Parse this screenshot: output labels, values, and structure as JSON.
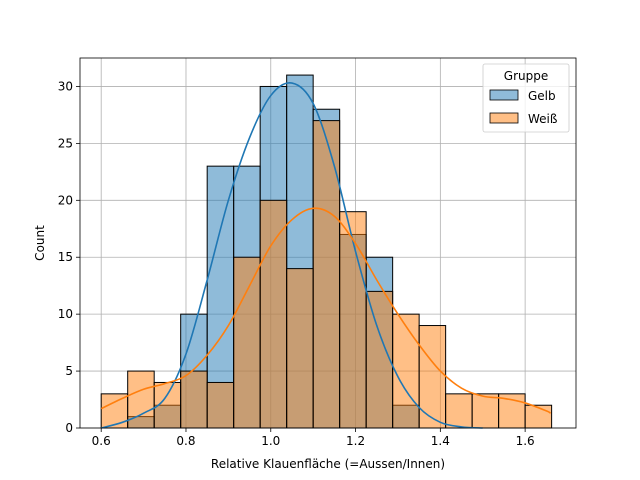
{
  "chart_data": {
    "type": "histogram",
    "xlabel": "Relative Klauenfläche (=Aussen/Innen)",
    "ylabel": "Count",
    "xlim": [
      0.55,
      1.72
    ],
    "ylim": [
      0,
      32.5
    ],
    "xticks": [
      0.6,
      0.8,
      1.0,
      1.2,
      1.4,
      1.6
    ],
    "xtick_labels": [
      "0.6",
      "0.8",
      "1.0",
      "1.2",
      "1.4",
      "1.6"
    ],
    "yticks": [
      0,
      5,
      10,
      15,
      20,
      25,
      30
    ],
    "ytick_labels": [
      "0",
      "5",
      "10",
      "15",
      "20",
      "25",
      "30"
    ],
    "grid": true,
    "legend": {
      "title": "Gruppe",
      "position": "top-right"
    },
    "bin_edges": [
      0.6,
      0.6625,
      0.725,
      0.7875,
      0.85,
      0.9125,
      0.975,
      1.0375,
      1.1,
      1.1625,
      1.225,
      1.2875,
      1.35,
      1.4125,
      1.475,
      1.5375,
      1.6,
      1.6625
    ],
    "series": [
      {
        "name": "Gelb",
        "color": "#1f77b4",
        "counts": [
          0,
          1,
          2,
          10,
          23,
          23,
          30,
          31,
          28,
          17,
          15,
          2,
          0,
          0,
          0,
          0,
          0
        ],
        "kde_x": [
          0.6,
          0.65,
          0.7,
          0.75,
          0.8,
          0.85,
          0.9,
          0.95,
          1.0,
          1.05,
          1.1,
          1.15,
          1.2,
          1.25,
          1.3,
          1.35,
          1.4,
          1.45,
          1.5
        ],
        "kde_y": [
          0,
          0.5,
          1.3,
          2.6,
          6.5,
          13.0,
          20.0,
          25.5,
          29.2,
          30.3,
          28.5,
          23.0,
          15.5,
          9.0,
          4.5,
          1.8,
          0.5,
          0.1,
          0
        ]
      },
      {
        "name": "Weiß",
        "color": "#ff7f0e",
        "counts": [
          3,
          5,
          4,
          5,
          4,
          15,
          20,
          14,
          27,
          19,
          12,
          10,
          9,
          3,
          3,
          3,
          2
        ],
        "kde_x": [
          0.6,
          0.65,
          0.7,
          0.75,
          0.8,
          0.85,
          0.9,
          0.95,
          1.0,
          1.05,
          1.1,
          1.15,
          1.2,
          1.25,
          1.3,
          1.35,
          1.4,
          1.45,
          1.5,
          1.55,
          1.6,
          1.65,
          1.66
        ],
        "kde_y": [
          1.7,
          2.6,
          3.4,
          3.9,
          4.6,
          6.4,
          9.0,
          12.5,
          16.0,
          18.3,
          19.3,
          18.6,
          16.2,
          13.0,
          10.0,
          7.3,
          5.0,
          3.5,
          2.8,
          2.6,
          2.2,
          1.5,
          1.3
        ]
      }
    ]
  }
}
